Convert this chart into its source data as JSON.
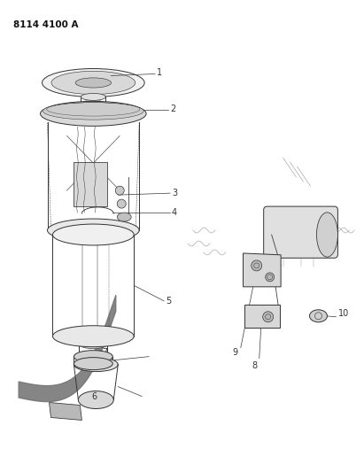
{
  "title": "8114 4100 A",
  "background_color": "#ffffff",
  "line_color": "#333333",
  "fig_width": 4.11,
  "fig_height": 5.33,
  "dpi": 100,
  "title_fontsize": 7.5,
  "label_fontsize": 7,
  "lw_main": 0.7,
  "lw_thin": 0.4,
  "lw_heavy": 1.2,
  "gray_fill": "#c8c8c8",
  "light_fill": "#e8e8e8",
  "dark_fill": "#888888",
  "strap_color": "#606060"
}
